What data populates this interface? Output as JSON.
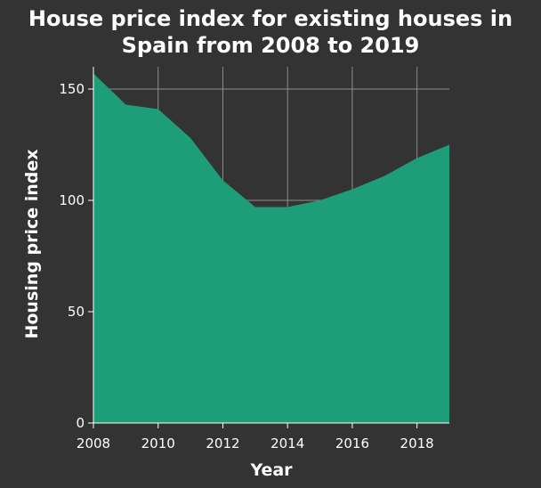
{
  "chart_data": {
    "type": "area",
    "title_lines": [
      "House price index for existing houses in",
      "Spain from 2008 to 2019"
    ],
    "xlabel": "Year",
    "ylabel": "Housing price index",
    "x": [
      2008,
      2009,
      2010,
      2011,
      2012,
      2013,
      2014,
      2015,
      2016,
      2017,
      2018,
      2019
    ],
    "series": [
      {
        "values": [
          157,
          143,
          141,
          128,
          109,
          97,
          97,
          100,
          105,
          111,
          119,
          125
        ]
      }
    ],
    "xlim": [
      2008,
      2019
    ],
    "ylim": [
      0,
      160
    ],
    "xticks": [
      2008,
      2010,
      2012,
      2014,
      2016,
      2018
    ],
    "xtick_labels": [
      "2008",
      "2010",
      "2012",
      "2014",
      "2016",
      "2018"
    ],
    "yticks": [
      0,
      50,
      100,
      150
    ],
    "ytick_labels": [
      "0",
      "50",
      "100",
      "150"
    ],
    "grid": true,
    "legend": "none",
    "colors": {
      "background": "#333333",
      "area": "#1e9e78",
      "grid": "#8c8c8c",
      "text": "#ffffff"
    }
  }
}
